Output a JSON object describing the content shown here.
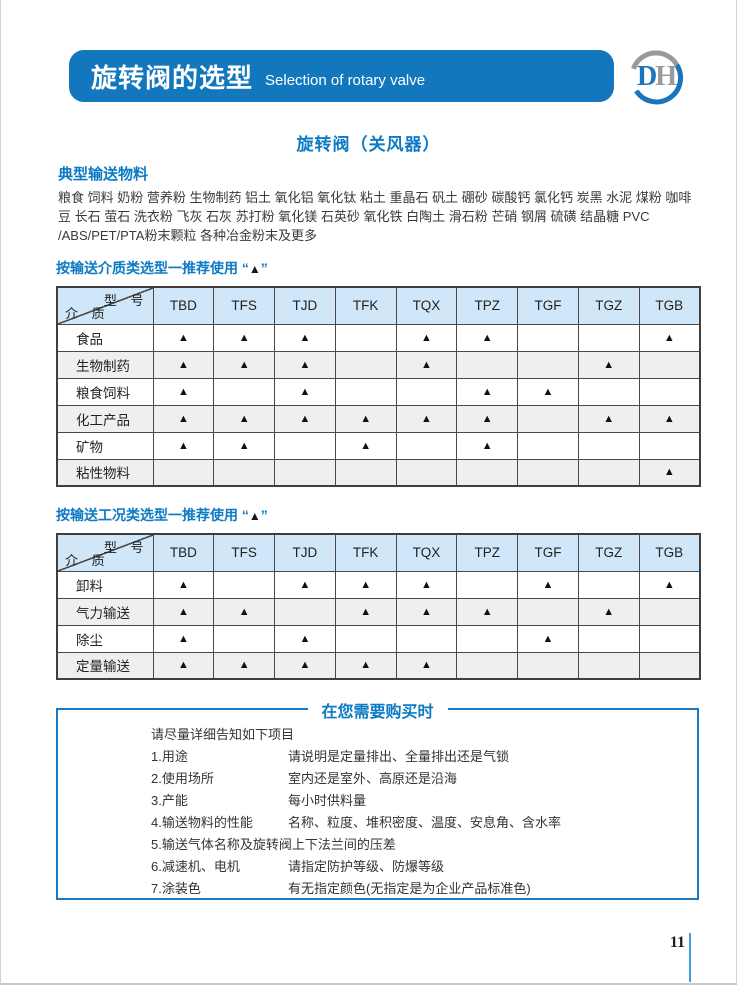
{
  "banner": {
    "title_zh": "旋转阀的选型",
    "title_en": "Selection of rotary valve"
  },
  "logo": {
    "letter_d": "D",
    "letter_h": "H"
  },
  "subtitle": "旋转阀（关风器）",
  "typical_materials": {
    "heading": "典型输送物料",
    "body": "粮食 饲料 奶粉 营养粉 生物制药 铝土 氧化铝 氧化钛 粘土 重晶石 矾土 硼砂 碳酸钙 氯化钙 炭黑 水泥 煤粉 咖啡豆 长石 萤石 洗衣粉 飞灰 石灰 苏打粉 氧化镁 石英砂 氧化铁 白陶土 滑石粉 芒硝 钢屑 硫磺 结晶糖 PVC /ABS/PET/PTA粉末颗粒 各种冶金粉末及更多"
  },
  "mark_glyph": "▲",
  "mark_quote_open": "“",
  "mark_quote_close": "”",
  "tables": [
    {
      "heading": "按输送介质类选型一推荐使用 ",
      "corner": {
        "top": "型 号",
        "bottom": "介 质"
      },
      "columns": [
        "TBD",
        "TFS",
        "TJD",
        "TFK",
        "TQX",
        "TPZ",
        "TGF",
        "TGZ",
        "TGB"
      ],
      "rows": [
        {
          "label": "食品",
          "marks": [
            1,
            1,
            1,
            0,
            1,
            1,
            0,
            0,
            1
          ]
        },
        {
          "label": "生物制药",
          "marks": [
            1,
            1,
            1,
            0,
            1,
            0,
            0,
            1,
            0
          ]
        },
        {
          "label": "粮食饲料",
          "marks": [
            1,
            0,
            1,
            0,
            0,
            1,
            1,
            0,
            0
          ]
        },
        {
          "label": "化工产品",
          "marks": [
            1,
            1,
            1,
            1,
            1,
            1,
            0,
            1,
            1
          ]
        },
        {
          "label": "矿物",
          "marks": [
            1,
            1,
            0,
            1,
            0,
            1,
            0,
            0,
            0
          ]
        },
        {
          "label": "粘性物料",
          "marks": [
            0,
            0,
            0,
            0,
            0,
            0,
            0,
            0,
            1
          ]
        }
      ]
    },
    {
      "heading": "按输送工况类选型一推荐使用 ",
      "corner": {
        "top": "型 号",
        "bottom": "介 质"
      },
      "columns": [
        "TBD",
        "TFS",
        "TJD",
        "TFK",
        "TQX",
        "TPZ",
        "TGF",
        "TGZ",
        "TGB"
      ],
      "rows": [
        {
          "label": "卸料",
          "marks": [
            1,
            0,
            1,
            1,
            1,
            0,
            1,
            0,
            1
          ]
        },
        {
          "label": "气力输送",
          "marks": [
            1,
            1,
            0,
            1,
            1,
            1,
            0,
            1,
            0
          ]
        },
        {
          "label": "除尘",
          "marks": [
            1,
            0,
            1,
            0,
            0,
            0,
            1,
            0,
            0
          ]
        },
        {
          "label": "定量输送",
          "marks": [
            1,
            1,
            1,
            1,
            1,
            0,
            0,
            0,
            0
          ]
        }
      ]
    }
  ],
  "purchase_box": {
    "title": "在您需要购买时",
    "intro": "请尽量详细告知如下项目",
    "items": [
      {
        "label": "1.用途",
        "desc": "请说明是定量排出、全量排出还是气锁"
      },
      {
        "label": "2.使用场所",
        "desc": "室内还是室外、高原还是沿海"
      },
      {
        "label": "3.产能",
        "desc": "每小时供料量"
      },
      {
        "label": "4.输送物料的性能",
        "desc": "名称、粒度、堆积密度、温度、安息角、含水率"
      },
      {
        "label": "5.输送气体名称及旋转阀上下法兰间的压差",
        "desc": ""
      },
      {
        "label": "6.减速机、电机",
        "desc": "请指定防护等级、防爆等级"
      },
      {
        "label": "7.涂装色",
        "desc": "有无指定颜色(无指定是为企业产品标准色)"
      }
    ]
  },
  "page_number": "11",
  "colors": {
    "accent_blue": "#1277bd",
    "heading_blue": "#0d7ac4",
    "table_header_bg": "#cfe7f8",
    "row_alt_bg": "#efefef",
    "logo_gray": "#9a9a9a",
    "footer_line_blue": "#3f9fd8"
  }
}
